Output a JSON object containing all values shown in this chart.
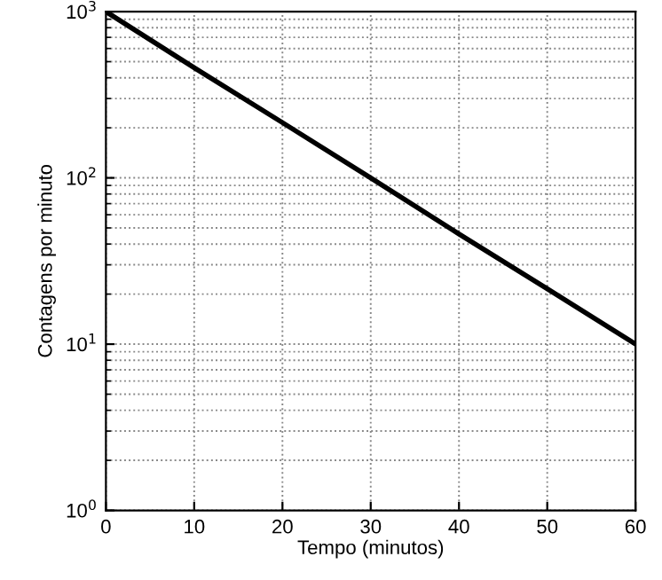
{
  "chart_data": {
    "type": "line",
    "xlabel": "Tempo (minutos)",
    "ylabel": "Contagens por minuto",
    "x": [
      0,
      10,
      20,
      30,
      40,
      50,
      60
    ],
    "series": [
      {
        "color": "#000000",
        "values": [
          1000,
          460,
          215,
          100,
          46,
          21.5,
          10
        ]
      }
    ],
    "log": "y",
    "xlim": [
      0,
      60
    ],
    "ylim": [
      1,
      1000
    ],
    "xticks": [
      0,
      10,
      20,
      30,
      40,
      50,
      60
    ],
    "yticks": [
      {
        "value": 1,
        "label": "10$^{0}$"
      },
      {
        "value": 10,
        "label": "10$^{1}$"
      },
      {
        "value": 100,
        "label": "10$^{2}$"
      },
      {
        "value": 1000,
        "label": "10$^{3}$"
      }
    ],
    "grid": true,
    "line_style": "solid"
  }
}
